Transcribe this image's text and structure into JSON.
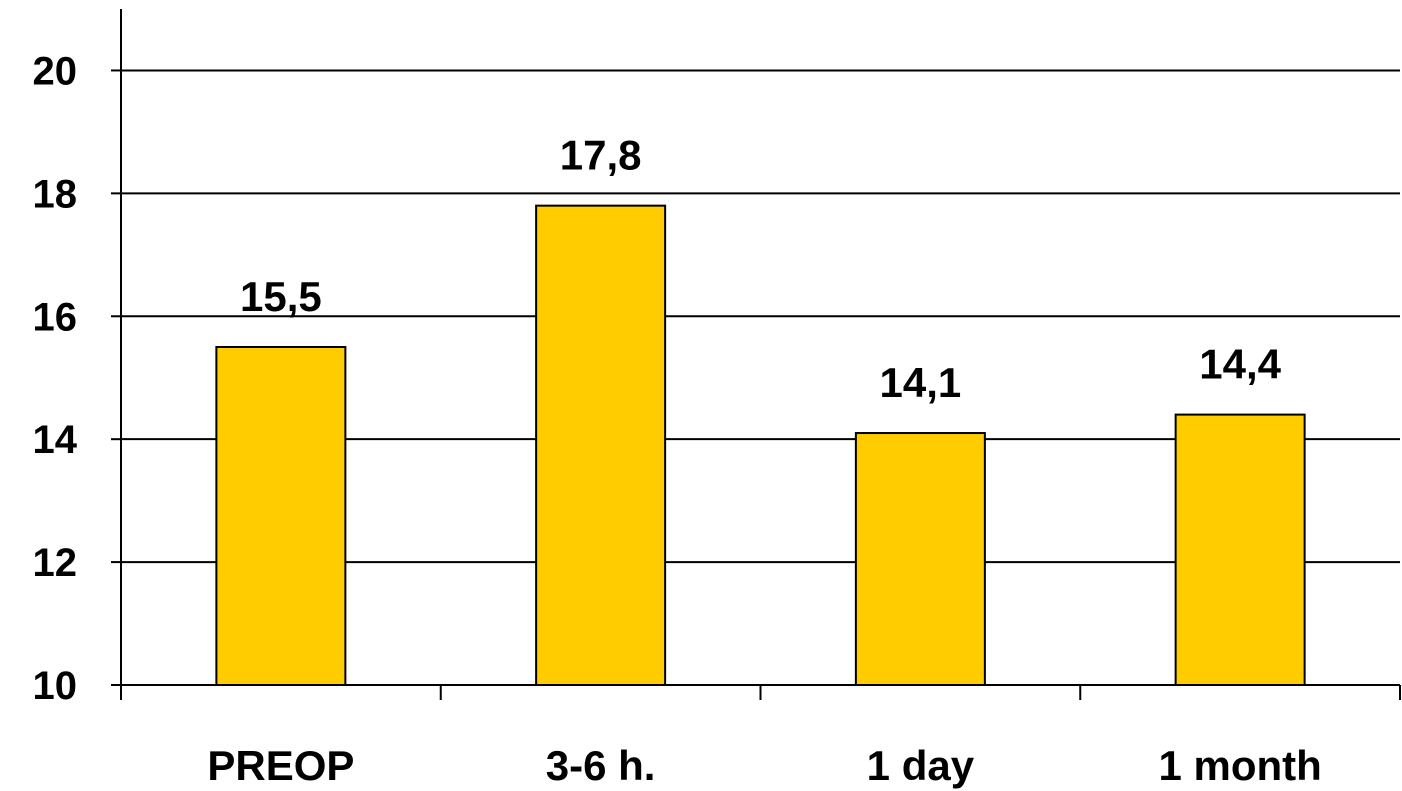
{
  "chart_data": {
    "type": "bar",
    "categories": [
      "PREOP",
      "3-6 h.",
      "1 day",
      "1 month"
    ],
    "values": [
      15.5,
      17.8,
      14.1,
      14.4
    ],
    "value_labels": [
      "15,5",
      "17,8",
      "14,1",
      "14,4"
    ],
    "title": "",
    "xlabel": "",
    "ylabel": "",
    "ylim": [
      10,
      21
    ],
    "yticks": [
      10,
      12,
      14,
      16,
      18,
      20
    ],
    "ytick_labels": [
      "10",
      "12",
      "14",
      "16",
      "18",
      "20"
    ],
    "grid": true,
    "legend": "none",
    "colors": {
      "bar_fill": "#FFCC00",
      "bar_stroke": "#000000",
      "grid": "#000000",
      "axis": "#000000",
      "background": "#FFFFFF"
    }
  }
}
